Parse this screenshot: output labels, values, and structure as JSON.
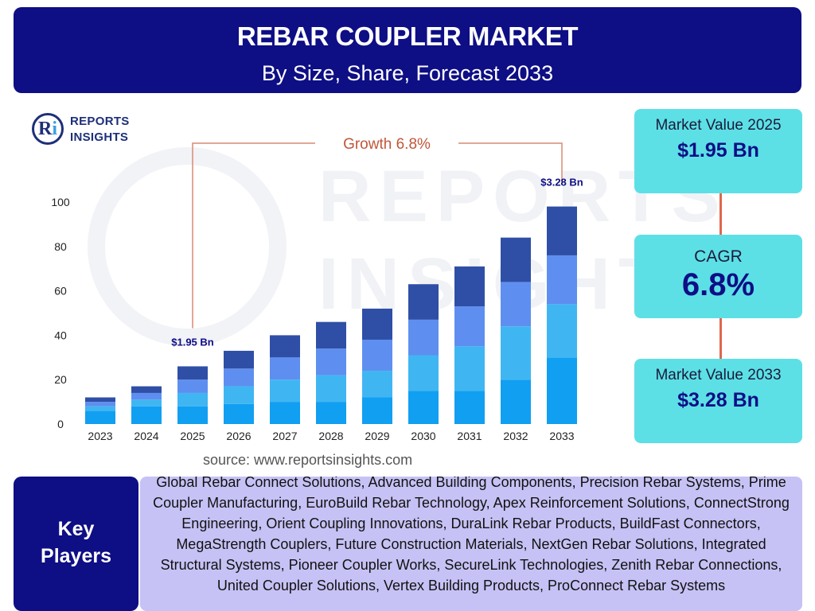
{
  "header": {
    "title": "REBAR COUPLER MARKET",
    "subtitle": "By Size, Share, Forecast 2033"
  },
  "logo": {
    "mark_letter_r": "R",
    "mark_letter_i": "i",
    "line1": "REPORTS",
    "line2": "INSIGHTS",
    "watermark_line1": "REPORTS",
    "watermark_line2": "INSIGHTS"
  },
  "chart_data": {
    "type": "bar",
    "stacked": true,
    "categories": [
      "2023",
      "2024",
      "2025",
      "2026",
      "2027",
      "2028",
      "2029",
      "2030",
      "2031",
      "2032",
      "2033"
    ],
    "series": [
      {
        "values": [
          6,
          8,
          8,
          9,
          10,
          10,
          12,
          15,
          15,
          20,
          30
        ]
      },
      {
        "values": [
          2,
          3,
          6,
          8,
          10,
          12,
          12,
          16,
          20,
          24,
          24
        ]
      },
      {
        "values": [
          2,
          3,
          6,
          8,
          10,
          12,
          14,
          16,
          18,
          20,
          22
        ]
      },
      {
        "values": [
          2,
          3,
          6,
          8,
          10,
          12,
          14,
          16,
          18,
          20,
          22
        ]
      }
    ],
    "colors": [
      "#119ff2",
      "#3fb6f2",
      "#5e8ff0",
      "#2f4fa6"
    ],
    "ylim": [
      0,
      100
    ],
    "yticks": [
      0,
      20,
      40,
      60,
      80,
      100
    ],
    "title": "",
    "xlabel": "",
    "ylabel": "",
    "annotations": [
      {
        "category": "2025",
        "text": "$1.95 Bn"
      },
      {
        "category": "2033",
        "text": "$3.28 Bn"
      }
    ],
    "growth_label": "Growth",
    "growth_value": "6.8%",
    "growth_color": "#c0573a",
    "grid": false
  },
  "source": "source: www.reportsinsights.com",
  "stats": {
    "market_2025_label": "Market Value 2025",
    "market_2025_value": "$1.95 Bn",
    "cagr_label": "CAGR",
    "cagr_value": "6.8%",
    "market_2033_label": "Market Value 2033",
    "market_2033_value": "$3.28 Bn"
  },
  "key_players": {
    "heading_line1": "Key",
    "heading_line2": "Players",
    "text": "Global Rebar Connect Solutions, Advanced Building Components, Precision Rebar Systems, Prime Coupler Manufacturing, EuroBuild Rebar Technology, Apex Reinforcement Solutions, ConnectStrong Engineering, Orient Coupling Innovations, DuraLink Rebar Products, BuildFast Connectors, MegaStrength Couplers, Future Construction Materials, NextGen Rebar Solutions, Integrated Structural Systems, Pioneer Coupler Works, SecureLink Technologies, Zenith Rebar Connections, United Coupler Solutions, Vertex Building Products, ProConnect Rebar Systems"
  },
  "colors": {
    "banner": "#0e0e85",
    "stat_box": "#5ce0e6",
    "players_box": "#c6c2f5",
    "connector": "#e0664a"
  }
}
